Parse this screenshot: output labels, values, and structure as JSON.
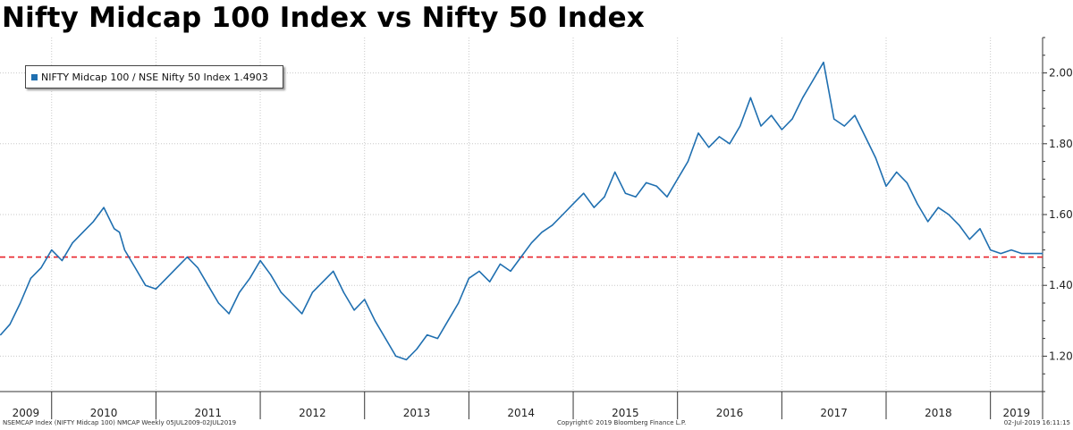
{
  "title": "Nifty Midcap 100 Index vs Nifty 50 Index",
  "footer": {
    "left": "NSEMCAP Index (NIFTY Midcap 100) NMCAP  Weekly 05JUL2009-02JUL2019",
    "center": "Copyright© 2019 Bloomberg Finance L.P.",
    "right": "02-Jul-2019 16:11:15"
  },
  "colors": {
    "series": "#1f6fb0",
    "reference": "#e8222a",
    "grid": "#c8c8c8",
    "axis": "#333333"
  },
  "chart_data": {
    "type": "line",
    "title": "Nifty Midcap 100 Index vs Nifty 50 Index",
    "xlabel": "",
    "ylabel": "",
    "ylim": [
      1.1,
      2.1
    ],
    "yticks": [
      1.2,
      1.4,
      1.6,
      1.8,
      2.0
    ],
    "ytick_labels": [
      "1.20",
      "1.40",
      "1.60",
      "1.80",
      "2.00"
    ],
    "y_axis_side": "right",
    "xlim": [
      2009.505,
      2019.5
    ],
    "year_labels": [
      "2009",
      "2010",
      "2011",
      "2012",
      "2013",
      "2014",
      "2015",
      "2016",
      "2017",
      "2018",
      "2019"
    ],
    "grid": true,
    "legend": {
      "position": "top-left",
      "text": "NIFTY Midcap 100 / NSE Nifty 50 Index 1.4903"
    },
    "reference_line": {
      "y": 1.48,
      "style": "dashed"
    },
    "series": [
      {
        "name": "NIFTY Midcap 100 / NSE Nifty 50 Index",
        "x": [
          2009.51,
          2009.6,
          2009.7,
          2009.8,
          2009.9,
          2010.0,
          2010.1,
          2010.2,
          2010.3,
          2010.4,
          2010.5,
          2010.6,
          2010.65,
          2010.7,
          2010.8,
          2010.9,
          2011.0,
          2011.1,
          2011.2,
          2011.3,
          2011.4,
          2011.5,
          2011.6,
          2011.7,
          2011.8,
          2011.9,
          2012.0,
          2012.1,
          2012.2,
          2012.3,
          2012.4,
          2012.5,
          2012.6,
          2012.7,
          2012.8,
          2012.9,
          2013.0,
          2013.1,
          2013.2,
          2013.3,
          2013.4,
          2013.5,
          2013.6,
          2013.7,
          2013.8,
          2013.9,
          2014.0,
          2014.1,
          2014.2,
          2014.3,
          2014.4,
          2014.5,
          2014.6,
          2014.7,
          2014.8,
          2014.9,
          2015.0,
          2015.1,
          2015.2,
          2015.3,
          2015.4,
          2015.5,
          2015.6,
          2015.7,
          2015.8,
          2015.9,
          2016.0,
          2016.1,
          2016.2,
          2016.3,
          2016.4,
          2016.5,
          2016.6,
          2016.7,
          2016.8,
          2016.9,
          2017.0,
          2017.1,
          2017.2,
          2017.3,
          2017.4,
          2017.5,
          2017.6,
          2017.7,
          2017.8,
          2017.9,
          2018.0,
          2018.1,
          2018.2,
          2018.3,
          2018.4,
          2018.5,
          2018.6,
          2018.7,
          2018.8,
          2018.9,
          2019.0,
          2019.1,
          2019.2,
          2019.3,
          2019.4,
          2019.5
        ],
        "values": [
          1.26,
          1.29,
          1.35,
          1.42,
          1.45,
          1.5,
          1.47,
          1.52,
          1.55,
          1.58,
          1.62,
          1.56,
          1.55,
          1.5,
          1.45,
          1.4,
          1.39,
          1.42,
          1.45,
          1.48,
          1.45,
          1.4,
          1.35,
          1.32,
          1.38,
          1.42,
          1.47,
          1.43,
          1.38,
          1.35,
          1.32,
          1.38,
          1.41,
          1.44,
          1.38,
          1.33,
          1.36,
          1.3,
          1.25,
          1.2,
          1.19,
          1.22,
          1.26,
          1.25,
          1.3,
          1.35,
          1.42,
          1.44,
          1.41,
          1.46,
          1.44,
          1.48,
          1.52,
          1.55,
          1.57,
          1.6,
          1.63,
          1.66,
          1.62,
          1.65,
          1.72,
          1.66,
          1.65,
          1.69,
          1.68,
          1.65,
          1.7,
          1.75,
          1.83,
          1.79,
          1.82,
          1.8,
          1.85,
          1.93,
          1.85,
          1.88,
          1.84,
          1.87,
          1.93,
          1.98,
          2.03,
          1.87,
          1.85,
          1.88,
          1.82,
          1.76,
          1.68,
          1.72,
          1.69,
          1.63,
          1.58,
          1.62,
          1.6,
          1.57,
          1.53,
          1.56,
          1.5,
          1.49,
          1.5,
          1.49,
          1.49,
          1.49
        ]
      }
    ]
  }
}
